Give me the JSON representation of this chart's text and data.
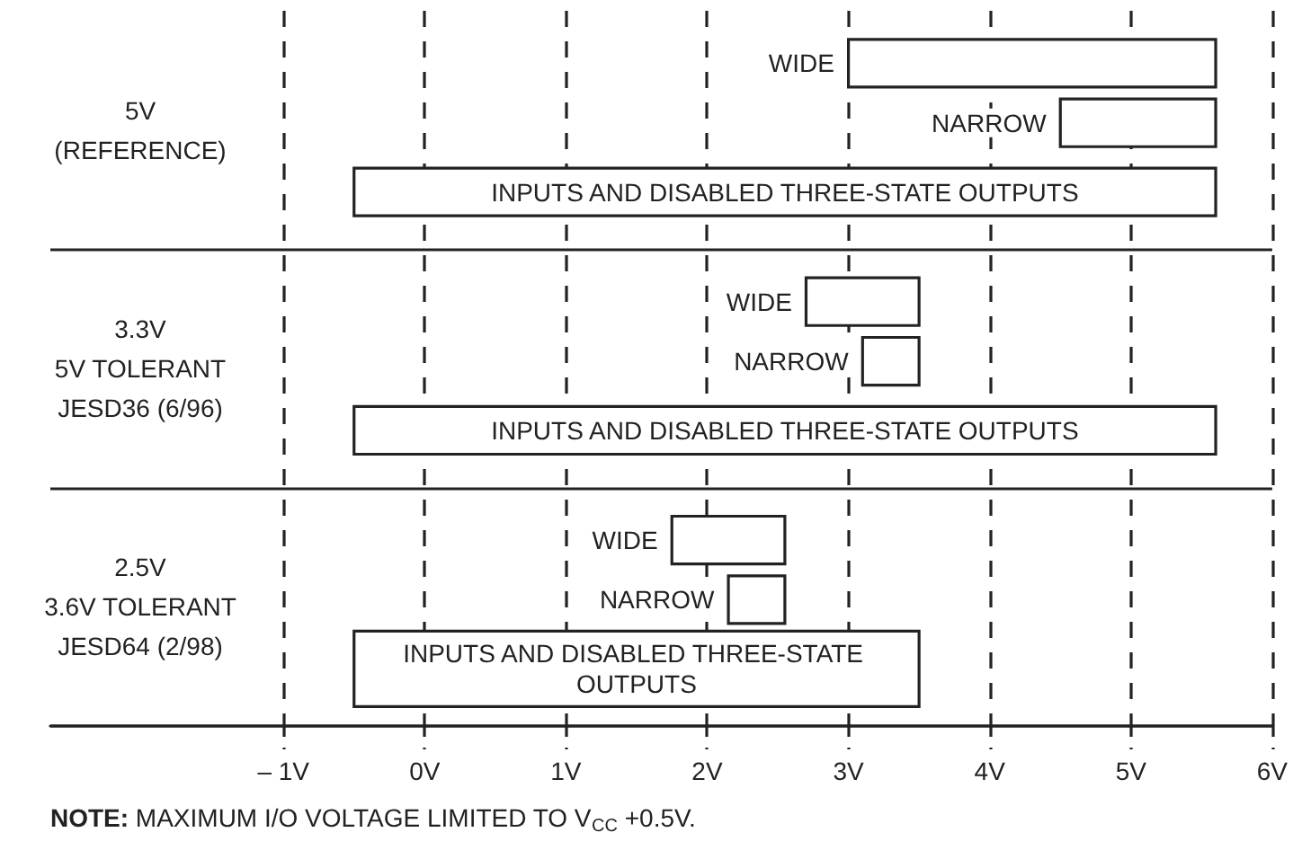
{
  "chart_data": {
    "type": "bar",
    "orientation": "horizontal",
    "categories": [
      "5V\n(REFERENCE)",
      "3.3V\n5V TOLERANT\nJESD36 (6/96)",
      "2.5V\n3.6V TOLERANT\nJESD64 (2/98)"
    ],
    "series": [
      {
        "name": "WIDE",
        "color": "#ffffff",
        "base": [
          3,
          2.7,
          1.75
        ],
        "values": [
          2.6,
          0.8,
          0.8
        ]
      },
      {
        "name": "NARROW",
        "color": "#ffffff",
        "base": [
          4.5,
          3.1,
          2.15
        ],
        "values": [
          1.1,
          0.4,
          0.4
        ]
      },
      {
        "name": "INPUTS AND DISABLED THREE-STATE OUTPUTS",
        "color": "#ffffff",
        "base": [
          -0.5,
          -0.5,
          -0.5
        ],
        "values": [
          6.1,
          6.1,
          4.0
        ]
      }
    ],
    "xlim": [
      -2.65,
      6
    ],
    "xticks": [
      {
        "value": -1,
        "label": "– 1V"
      },
      {
        "value": 0,
        "label": "0V"
      },
      {
        "value": 1,
        "label": "1V"
      },
      {
        "value": 2,
        "label": "2V"
      },
      {
        "value": 3,
        "label": "3V"
      },
      {
        "value": 4,
        "label": "4V"
      },
      {
        "value": 5,
        "label": "5V"
      },
      {
        "value": 6,
        "label": "6V"
      }
    ],
    "grid": "x",
    "annotations": [
      "NOTE: MAXIMUM I/O VOLTAGE LIMITED TO V$_{CC}$ +0.5V."
    ]
  }
}
